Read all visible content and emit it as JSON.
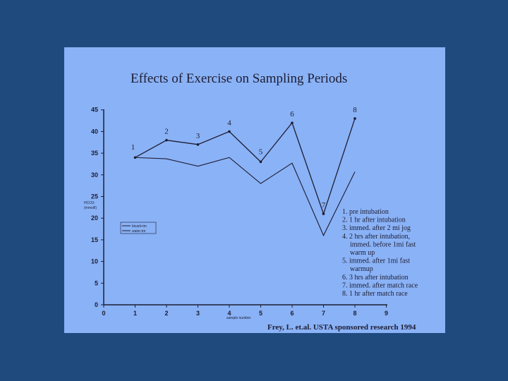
{
  "chart_data": {
    "type": "line",
    "title": "Effects of Exercise on Sampling Periods",
    "xlabel": "sample number",
    "ylabel": [
      "HCO3-",
      "(mmol/l)"
    ],
    "xlim": [
      0,
      9
    ],
    "ylim": [
      0,
      45
    ],
    "x_ticks": [
      0,
      1,
      2,
      3,
      4,
      5,
      6,
      7,
      8,
      9
    ],
    "y_ticks": [
      0,
      5,
      10,
      15,
      20,
      25,
      30,
      35,
      40,
      45
    ],
    "grid": false,
    "legend_position": "left-middle",
    "series": [
      {
        "name": "bicarb-tm",
        "style": "solid-with-markers",
        "x": [
          1,
          2,
          3,
          4,
          5,
          6,
          7,
          8
        ],
        "y": [
          34,
          38,
          37,
          40,
          33,
          42,
          21,
          43
        ]
      },
      {
        "name": "water-tm",
        "style": "solid",
        "x": [
          1,
          2,
          3,
          4,
          5,
          6,
          7,
          8
        ],
        "y": [
          34,
          33.7,
          32,
          34,
          28,
          32.7,
          16,
          30.7
        ]
      }
    ],
    "point_labels": [
      "1",
      "2",
      "3",
      "4",
      "5",
      "6",
      "7",
      "8"
    ],
    "annotations": [
      "1. pre intubation",
      "2. 1 hr after intubation",
      "3. immed. after 2 mi jog",
      "4. 2 hrs after intubation,",
      "immed. before 1mi fast",
      "warm up",
      "5. immed. after 1mi fast",
      "warmup",
      "6. 3 hrs after intubation",
      "7. immed. after match race",
      "8. 1 hr after match race"
    ],
    "credit": "Frey, L. et.al. USTA sponsored research 1994"
  }
}
